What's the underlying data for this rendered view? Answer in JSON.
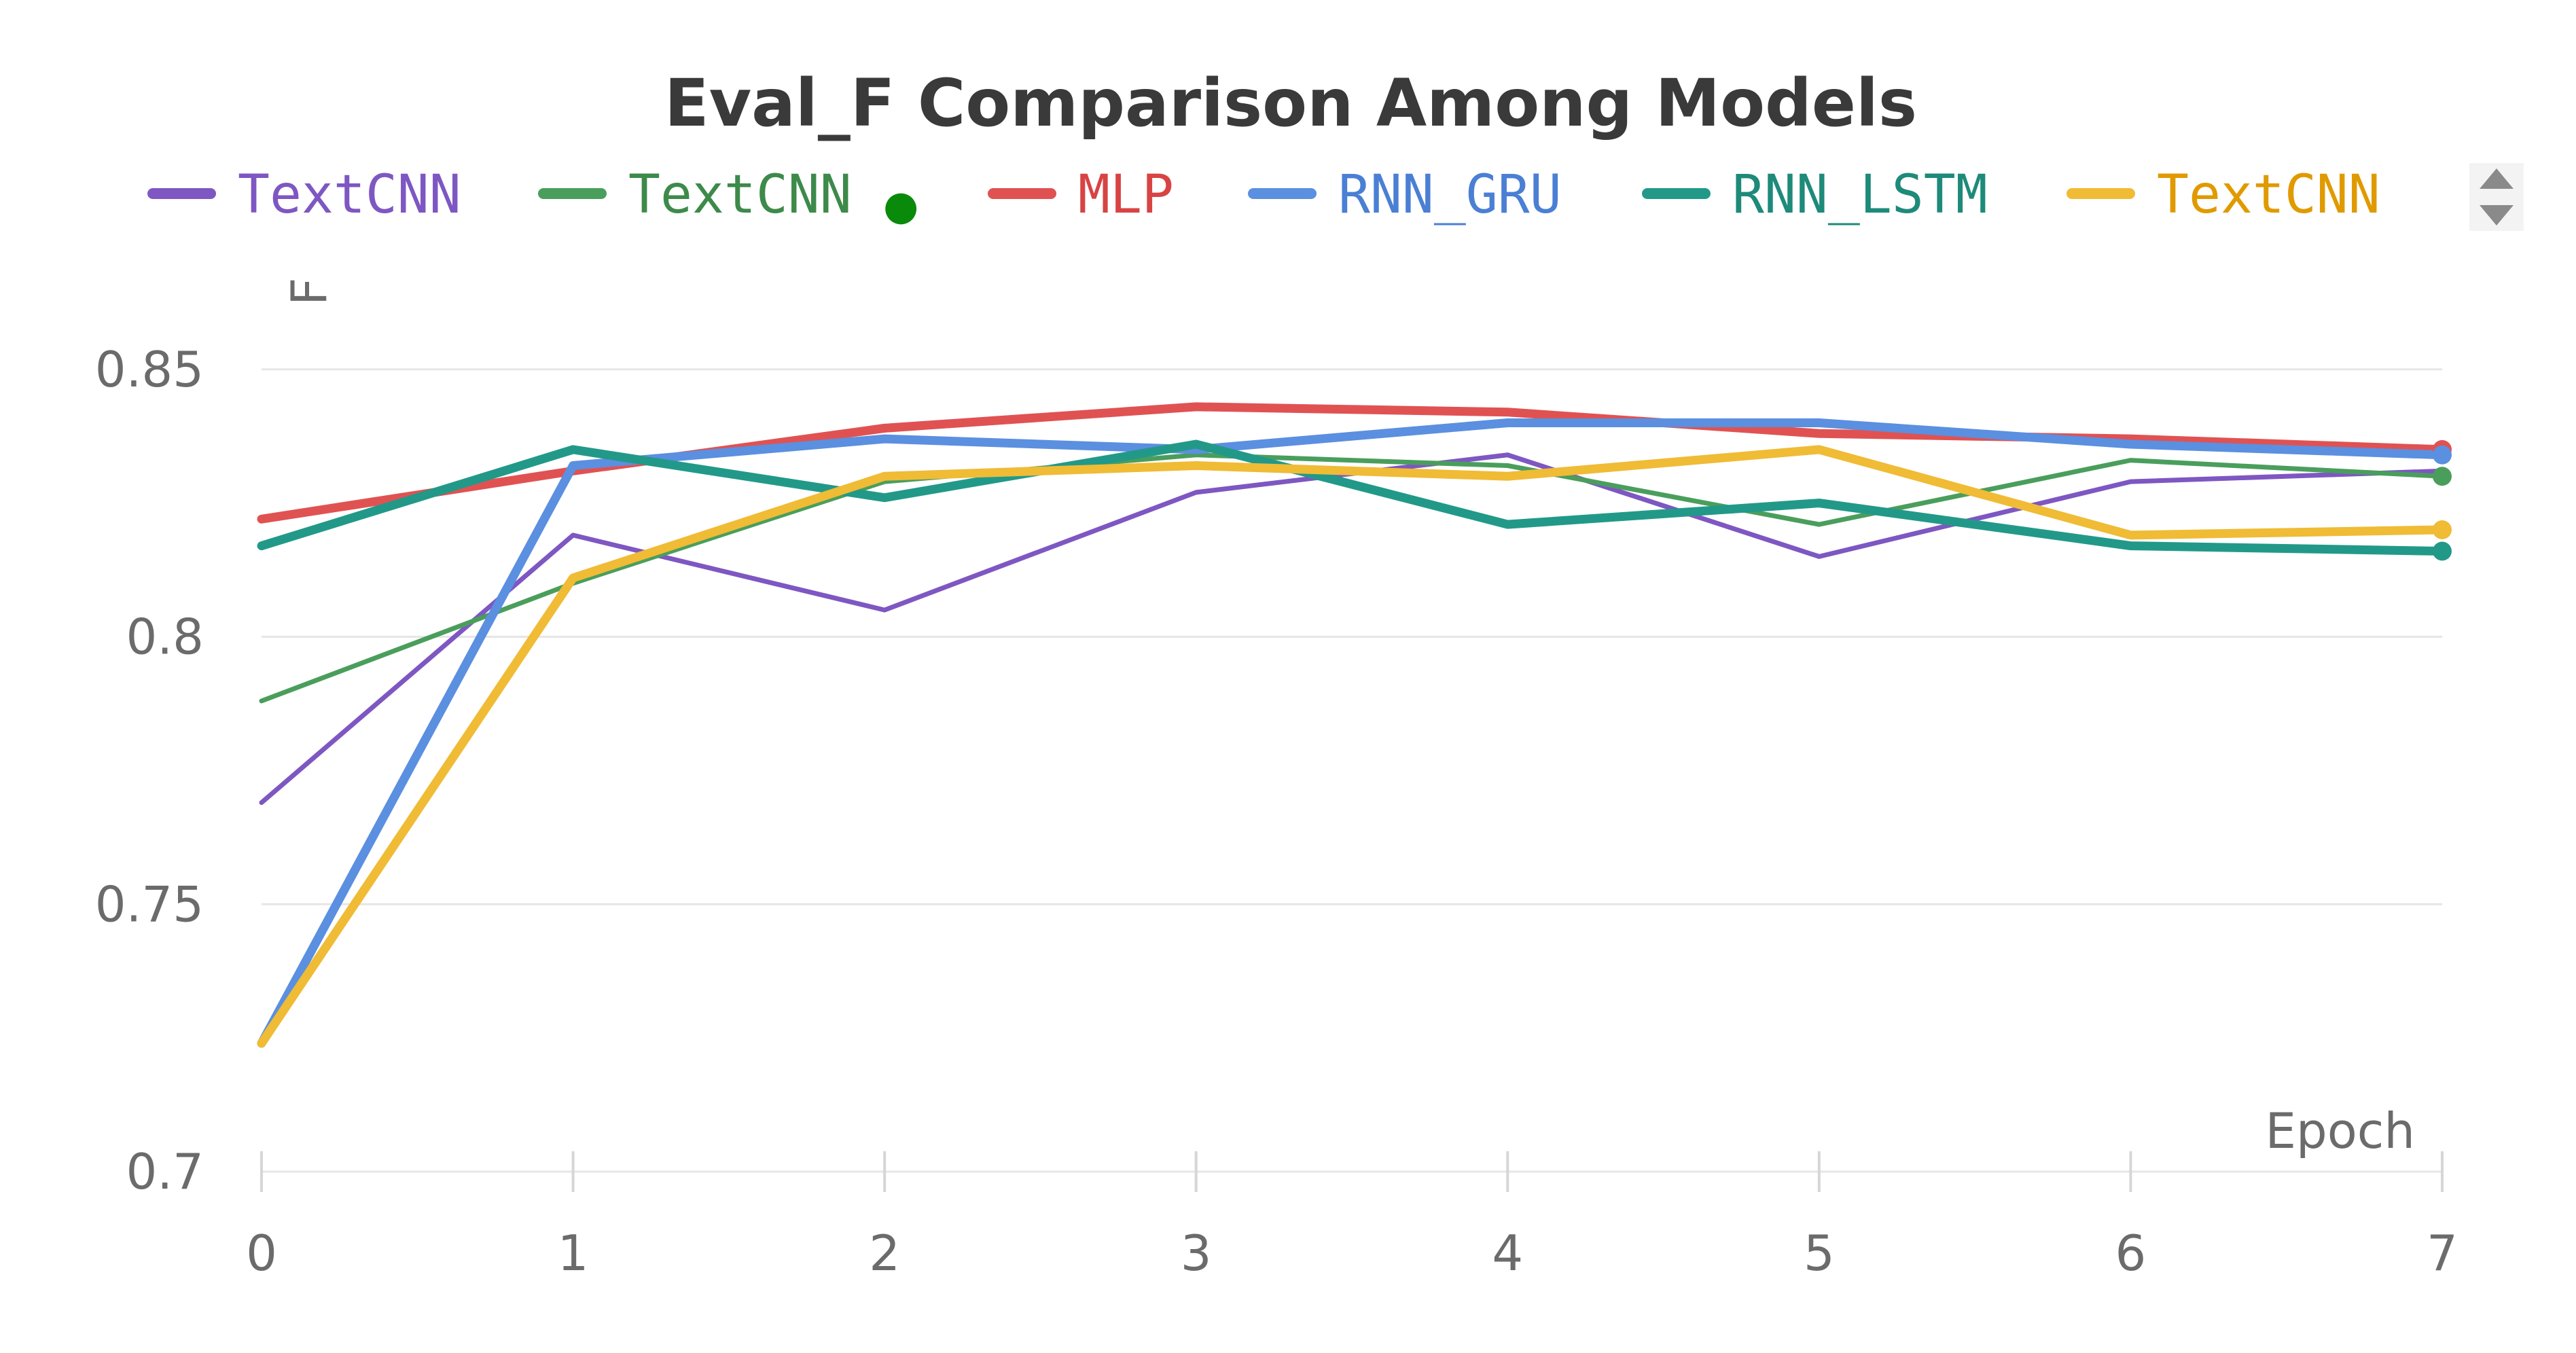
{
  "chart_data": {
    "type": "line",
    "title": "Eval_F Comparison Among Models",
    "xlabel": "Epoch",
    "ylabel": "F",
    "xlim": [
      0,
      7
    ],
    "ylim": [
      0.7,
      0.86
    ],
    "x": [
      0,
      1,
      2,
      3,
      4,
      5,
      6,
      7
    ],
    "xticks": [
      "0",
      "1",
      "2",
      "3",
      "4",
      "5",
      "6",
      "7"
    ],
    "yticks": [
      {
        "value": 0.7,
        "label": "0.7"
      },
      {
        "value": 0.75,
        "label": "0.75"
      },
      {
        "value": 0.8,
        "label": "0.8"
      },
      {
        "value": 0.85,
        "label": "0.85"
      }
    ],
    "grid": true,
    "legend_position": "top",
    "series": [
      {
        "name": "TextCNN",
        "legend_marker": "",
        "color": "#7e57c2",
        "label_color": "#7e57c2",
        "values": [
          0.769,
          0.819,
          0.805,
          0.827,
          0.834,
          0.815,
          0.829,
          0.831
        ],
        "end_dot": false
      },
      {
        "name": "TextCNN",
        "legend_marker": "●",
        "color": "#4a9e5c",
        "label_color": "#3d8a4a",
        "values": [
          0.788,
          0.81,
          0.829,
          0.834,
          0.832,
          0.821,
          0.833,
          0.83
        ],
        "end_dot": true
      },
      {
        "name": "MLP",
        "legend_marker": "",
        "color": "#e05252",
        "label_color": "#d84343",
        "values": [
          0.822,
          0.831,
          0.839,
          0.843,
          0.842,
          0.838,
          0.837,
          0.835
        ],
        "end_dot": true
      },
      {
        "name": "RNN_GRU",
        "legend_marker": "",
        "color": "#5b8fe0",
        "label_color": "#4a7fd4",
        "values": [
          0.724,
          0.832,
          0.837,
          0.835,
          0.84,
          0.84,
          0.836,
          0.834
        ],
        "end_dot": true
      },
      {
        "name": "RNN_LSTM",
        "legend_marker": "",
        "color": "#229988",
        "label_color": "#1e8a7a",
        "values": [
          0.817,
          0.835,
          0.826,
          0.836,
          0.821,
          0.825,
          0.817,
          0.816
        ],
        "end_dot": true
      },
      {
        "name": "TextCNN",
        "legend_marker": "",
        "color": "#f0bb35",
        "label_color": "#e09a00",
        "values": [
          0.724,
          0.811,
          0.83,
          0.832,
          0.83,
          0.835,
          0.819,
          0.82
        ],
        "end_dot": true
      }
    ]
  }
}
